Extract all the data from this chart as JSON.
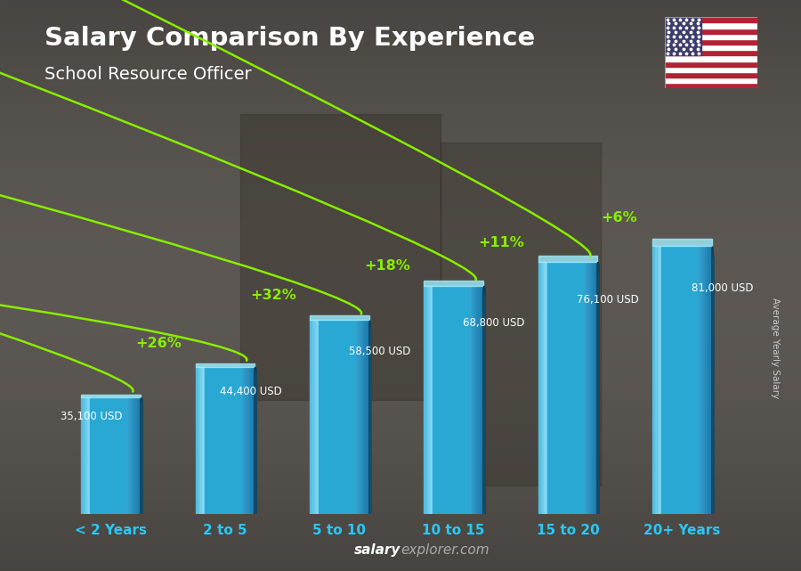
{
  "title": "Salary Comparison By Experience",
  "subtitle": "School Resource Officer",
  "categories": [
    "< 2 Years",
    "2 to 5",
    "5 to 10",
    "10 to 15",
    "15 to 20",
    "20+ Years"
  ],
  "values": [
    35100,
    44400,
    58500,
    68800,
    76100,
    81000
  ],
  "labels": [
    "35,100 USD",
    "44,400 USD",
    "58,500 USD",
    "68,800 USD",
    "76,100 USD",
    "81,000 USD"
  ],
  "pct_changes": [
    "+26%",
    "+32%",
    "+18%",
    "+11%",
    "+6%"
  ],
  "bar_color_main": "#29a8d4",
  "bar_color_light": "#5dd8f8",
  "bar_color_dark": "#1a7aaa",
  "bar_color_side": "#1565a0",
  "bar_color_top": "#80e8ff",
  "background_color": "#505050",
  "title_color": "#ffffff",
  "subtitle_color": "#ffffff",
  "label_color": "#ffffff",
  "pct_color": "#88ee00",
  "xticklabel_color": "#29c8f8",
  "footer_salary_color": "#ffffff",
  "footer_explorer_color": "#aaaaaa",
  "ylabel_text": "Average Yearly Salary",
  "ylim": [
    0,
    100000
  ],
  "bar_width": 0.52
}
